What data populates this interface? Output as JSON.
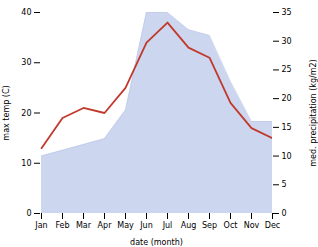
{
  "chart_data": {
    "type": "line",
    "categories": [
      "Jan",
      "Feb",
      "Mar",
      "Apr",
      "May",
      "Jun",
      "Jul",
      "Aug",
      "Sep",
      "Oct",
      "Nov",
      "Dec"
    ],
    "xlabel": "date (month)",
    "ylabel": "max temp (C)",
    "y2label": "med. precipitation (kg/m2)",
    "series": [
      {
        "type": "area",
        "axis": "y2",
        "color": "#b8c4e8",
        "values": [
          10,
          11,
          12,
          13,
          18,
          35,
          35,
          32,
          31,
          23,
          16,
          16
        ]
      },
      {
        "type": "line",
        "color": "#c0392b",
        "values": [
          13,
          19,
          21,
          20,
          25,
          34,
          38,
          33,
          31,
          22,
          17,
          15
        ]
      }
    ],
    "ylim": [
      0,
      40
    ],
    "yticks": [
      0,
      10,
      20,
      30,
      40
    ],
    "y2lim": [
      0,
      35
    ],
    "y2ticks": [
      0,
      5,
      10,
      15,
      20,
      25,
      30,
      35
    ]
  }
}
